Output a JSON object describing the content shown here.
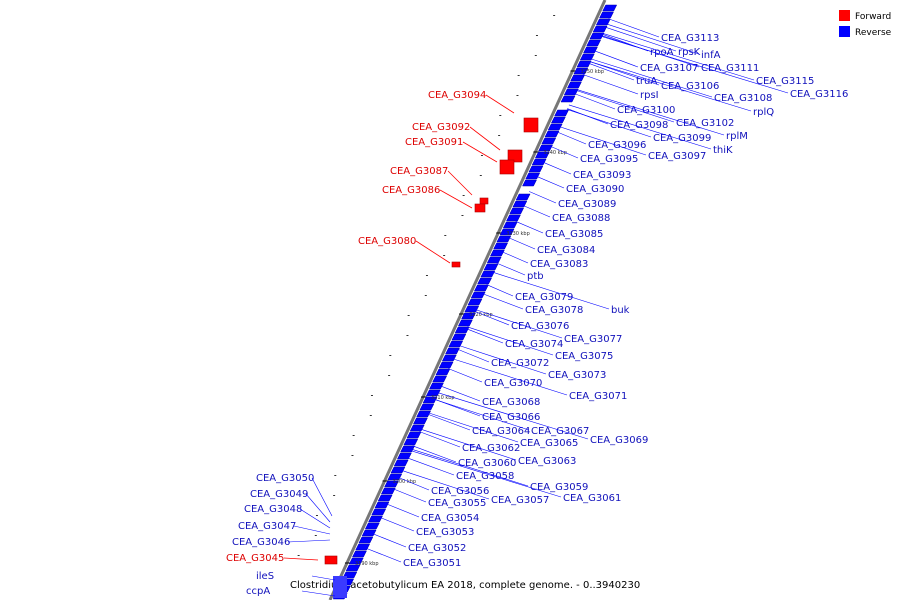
{
  "colors": {
    "forward": "#ff0000",
    "reverse": "#0000ff",
    "forward_text": "#dd0000",
    "reverse_text": "#1111bb",
    "backbone": "#777777"
  },
  "legend": [
    {
      "label": "Forward",
      "color": "#ff0000"
    },
    {
      "label": "Reverse",
      "color": "#0000ff"
    }
  ],
  "caption": "Clostridium acetobutylicum EA 2018, complete genome. - 0..3940230",
  "scale_labels": [
    "3190 kbp",
    "3200 kbp",
    "3210 kbp",
    "3220 kbp",
    "3230 kbp",
    "3240 kbp",
    "3250 kbp"
  ],
  "forward_labels": [
    "CEA_G3094",
    "CEA_G3092",
    "CEA_G3091",
    "CEA_G3087",
    "CEA_G3086",
    "CEA_G3080",
    "CEA_G3045"
  ],
  "reverse_labels_left": [
    "CEA_G3050",
    "CEA_G3049",
    "CEA_G3048",
    "CEA_G3047",
    "CEA_G3046",
    "ileS",
    "ccpA"
  ],
  "reverse_labels_right": [
    "CEA_G3113",
    "rpoA",
    "rpsK",
    "infA",
    "CEA_G3107",
    "CEA_G3111",
    "truA",
    "CEA_G3106",
    "CEA_G3115",
    "CEA_G3116",
    "rpsI",
    "CEA_G3108",
    "CEA_G3100",
    "rplQ",
    "CEA_G3098",
    "CEA_G3102",
    "rplM",
    "CEA_G3099",
    "CEA_G3096",
    "thiK",
    "CEA_G3095",
    "CEA_G3097",
    "CEA_G3093",
    "CEA_G3090",
    "CEA_G3089",
    "CEA_G3088",
    "CEA_G3085",
    "CEA_G3084",
    "CEA_G3083",
    "ptb",
    "CEA_G3079",
    "CEA_G3078",
    "buk",
    "CEA_G3076",
    "CEA_G3077",
    "CEA_G3074",
    "CEA_G3075",
    "CEA_G3072",
    "CEA_G3073",
    "CEA_G3070",
    "CEA_G3071",
    "CEA_G3068",
    "CEA_G3066",
    "CEA_G3064",
    "CEA_G3067",
    "CEA_G3069",
    "CEA_G3065",
    "CEA_G3062",
    "CEA_G3060",
    "CEA_G3063",
    "CEA_G3058",
    "CEA_G3059",
    "CEA_G3056",
    "CEA_G3057",
    "CEA_G3061",
    "CEA_G3055",
    "CEA_G3054",
    "CEA_G3053",
    "CEA_G3052",
    "CEA_G3051"
  ]
}
